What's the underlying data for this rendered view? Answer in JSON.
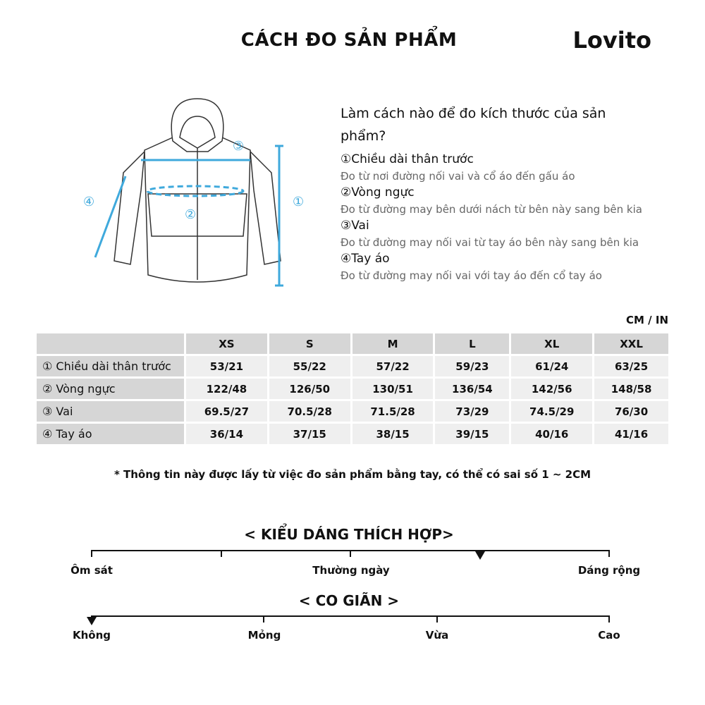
{
  "header": {
    "title": "CÁCH ĐO SẢN PHẨM",
    "logo": "Lovito"
  },
  "guide": {
    "question": "Làm cách nào để đo kích thước của sản phẩm?",
    "items": [
      {
        "label": "①Chiều dài thân trước",
        "desc": "Đo từ nơi đường nối vai và cổ áo đến gấu áo"
      },
      {
        "label": "②Vòng ngực",
        "desc": "Đo từ đường may bên dưới nách từ bên này sang bên kia"
      },
      {
        "label": "③Vai",
        "desc": "Đo từ đường may nối vai từ tay áo bên này sang bên kia"
      },
      {
        "label": "④Tay áo",
        "desc": "Đo từ đường may nối vai với tay áo đến cổ tay áo"
      }
    ],
    "diagram_markers": [
      "①",
      "②",
      "③",
      "④"
    ],
    "accent": "#3fa9dc"
  },
  "table": {
    "unit": "CM / IN",
    "sizes": [
      "XS",
      "S",
      "M",
      "L",
      "XL",
      "XXL"
    ],
    "rows": [
      {
        "label": "① Chiều dài thân trước",
        "values": [
          "53/21",
          "55/22",
          "57/22",
          "59/23",
          "61/24",
          "63/25"
        ]
      },
      {
        "label": "② Vòng ngực",
        "values": [
          "122/48",
          "126/50",
          "130/51",
          "136/54",
          "142/56",
          "148/58"
        ]
      },
      {
        "label": "③ Vai",
        "values": [
          "69.5/27",
          "70.5/28",
          "71.5/28",
          "73/29",
          "74.5/29",
          "76/30"
        ]
      },
      {
        "label": "④ Tay áo",
        "values": [
          "36/14",
          "37/15",
          "38/15",
          "39/15",
          "40/16",
          "41/16"
        ]
      }
    ]
  },
  "note": "* Thông tin này được lấy từ việc đo sản phẩm bằng tay, có thể có sai số 1 ~ 2CM",
  "fit": {
    "title": "< KIỂU DÁNG THÍCH HỢP>",
    "labels": [
      "Ôm sát",
      "Thường ngày",
      "Dáng rộng"
    ],
    "level": 0.75
  },
  "stretch": {
    "title": "< CO GIÃN >",
    "labels": [
      "Không",
      "Mỏng",
      "Vừa",
      "Cao"
    ],
    "level": 0
  }
}
